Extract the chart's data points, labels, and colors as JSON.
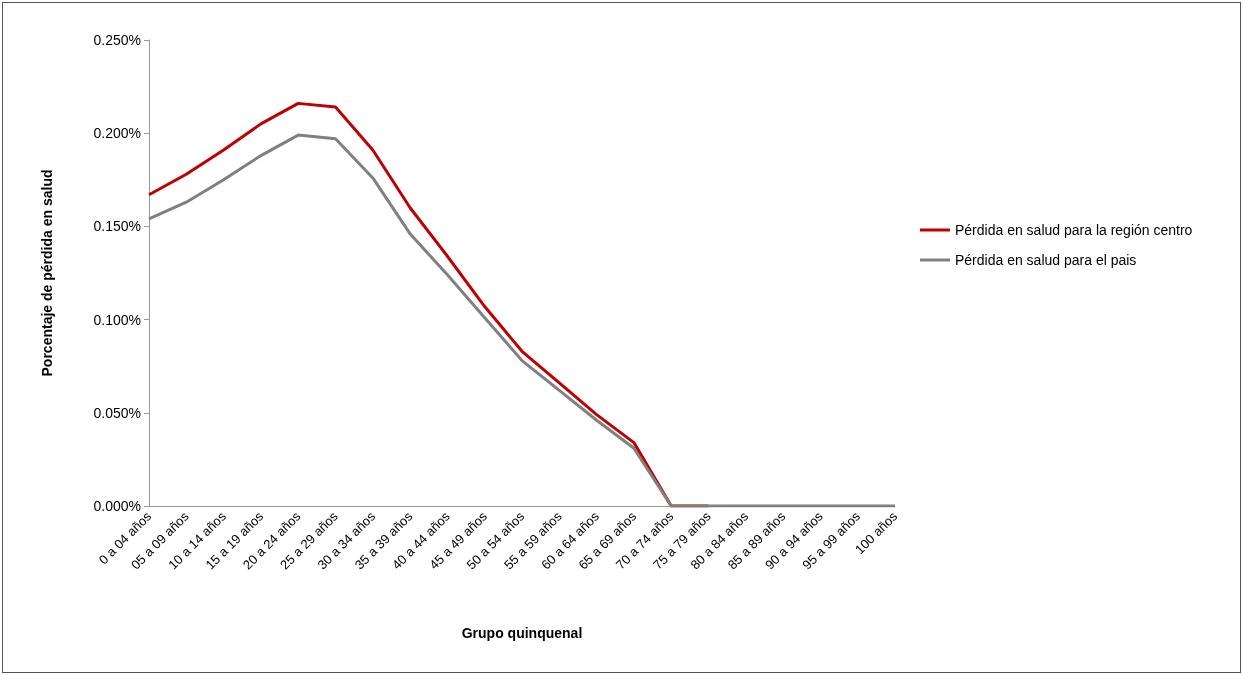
{
  "chart_data": {
    "type": "line",
    "xlabel": "Grupo quinquenal",
    "ylabel": "Porcentaje de pérdida en salud",
    "categories": [
      "0 a 04 años",
      "05 a 09 años",
      "10 a 14 años",
      "15 a 19 años",
      "20 a 24 años",
      "25 a 29 años",
      "30 a 34 años",
      "35 a 39 años",
      "40 a 44 años",
      "45 a 49 años",
      "50 a 54 años",
      "55 a 59 años",
      "60 a 64 años",
      "65 a 69 años",
      "70 a 74 años",
      "75 a 79 años",
      "80 a 84 años",
      "85 a 89 años",
      "90 a 94 años",
      "95 a 99 años",
      "100 años"
    ],
    "series": [
      {
        "name": "Pérdida en salud para la región centro",
        "color": "#c00000",
        "values": [
          0.167,
          0.178,
          0.191,
          0.205,
          0.216,
          0.214,
          0.191,
          0.16,
          0.134,
          0.107,
          0.083,
          0.066,
          0.049,
          0.034,
          0,
          0,
          null,
          null,
          null,
          null,
          null
        ]
      },
      {
        "name": "Pérdida en salud para el pais",
        "color": "#808080",
        "values": [
          0.154,
          0.163,
          0.175,
          0.188,
          0.199,
          0.197,
          0.176,
          0.146,
          0.124,
          0.101,
          0.078,
          0.062,
          0.046,
          0.031,
          0,
          0,
          0,
          0,
          0,
          0,
          0
        ]
      }
    ],
    "ylim": [
      0,
      0.25
    ],
    "yticks": [
      {
        "value": 0,
        "label": "0.000%"
      },
      {
        "value": 0.05,
        "label": "0.050%"
      },
      {
        "value": 0.1,
        "label": "0.100%"
      },
      {
        "value": 0.15,
        "label": "0.150%"
      },
      {
        "value": 0.2,
        "label": "0.200%"
      },
      {
        "value": 0.25,
        "label": "0.250%"
      }
    ],
    "grid": false,
    "legend": "right",
    "marker": "none",
    "line_style": "solid"
  }
}
